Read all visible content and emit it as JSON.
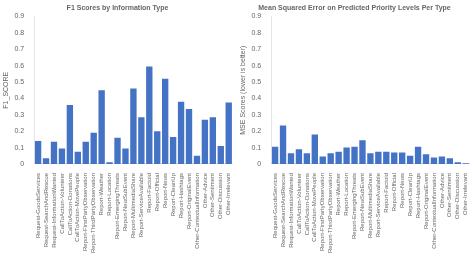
{
  "chart_data": [
    {
      "type": "bar",
      "title": "F1 Scores by Information Type",
      "ylabel": "F1_SCORE",
      "categories": [
        "Request-GoodsServices",
        "Request-SearchAndRescue",
        "Request-InformationWanted",
        "CallToAction-Volunteer",
        "CallToAction-Donations",
        "CallToAction-MovePeople",
        "Report-FirstPartyObservation",
        "Report-ThirdPartyObservation",
        "Report-Weather",
        "Report-Location",
        "Report-EmergingThreats",
        "Report-NewSubEvent",
        "Report-MultimediaShare",
        "Report-ServiceAvailable",
        "Report-Factoid",
        "Report-Official",
        "Report-News",
        "Report-CleanUp",
        "Report-Hashtags",
        "Report-OriginalEvent",
        "Other-ContextualInformation",
        "Other-Advice",
        "Other-Sentiment",
        "Other-Discussion",
        "Other-Irrelevant"
      ],
      "values": [
        0.14,
        0.035,
        0.135,
        0.095,
        0.36,
        0.075,
        0.135,
        0.19,
        0.45,
        0.01,
        0.16,
        0.095,
        0.46,
        0.285,
        0.595,
        0.2,
        0.52,
        0.165,
        0.38,
        0.335,
        0.05,
        0.27,
        0.285,
        0.11,
        0.375
      ],
      "color": "#4472C4",
      "ylim": [
        0.0,
        0.9
      ],
      "yticks": [
        0,
        0.1,
        0.2,
        0.3,
        0.4,
        0.5,
        0.6,
        0.7,
        0.8,
        0.9
      ],
      "grid": false
    },
    {
      "type": "bar",
      "title": "Mean Squared Error on Predicted Priority Levels Per Type",
      "ylabel": "MSE Scores (lower is better)",
      "categories": [
        "Request-GoodsServices",
        "Request-SearchAndRescue",
        "Request-InformationWanted",
        "CallToAction-Volunteer",
        "CallToAction-Donations",
        "CallToAction-MovePeople",
        "Report-FirstPartyObservation",
        "Report-ThirdPartyObservation",
        "Report-Weather",
        "Report-Location",
        "Report-EmergingThreats",
        "Report-NewSubEvent",
        "Report-MultimediaShare",
        "Report-ServiceAvailable",
        "Report-Factoid",
        "Report-Official",
        "Report-News",
        "Report-CleanUp",
        "Report-Hashtags",
        "Report-OriginalEvent",
        "Other-ContextualInformation",
        "Other-Advice",
        "Other-Sentiment",
        "Other-Discussion",
        "Other-Irrelevant"
      ],
      "values": [
        0.105,
        0.235,
        0.065,
        0.09,
        0.065,
        0.18,
        0.045,
        0.065,
        0.075,
        0.1,
        0.105,
        0.145,
        0.065,
        0.075,
        0.075,
        0.07,
        0.07,
        0.05,
        0.105,
        0.06,
        0.04,
        0.045,
        0.035,
        0.01,
        0.005
      ],
      "color": "#4472C4",
      "ylim": [
        0.0,
        0.9
      ],
      "yticks": [
        0,
        0.1,
        0.2,
        0.3,
        0.4,
        0.5,
        0.6,
        0.7,
        0.8,
        0.9
      ],
      "grid": false
    }
  ]
}
